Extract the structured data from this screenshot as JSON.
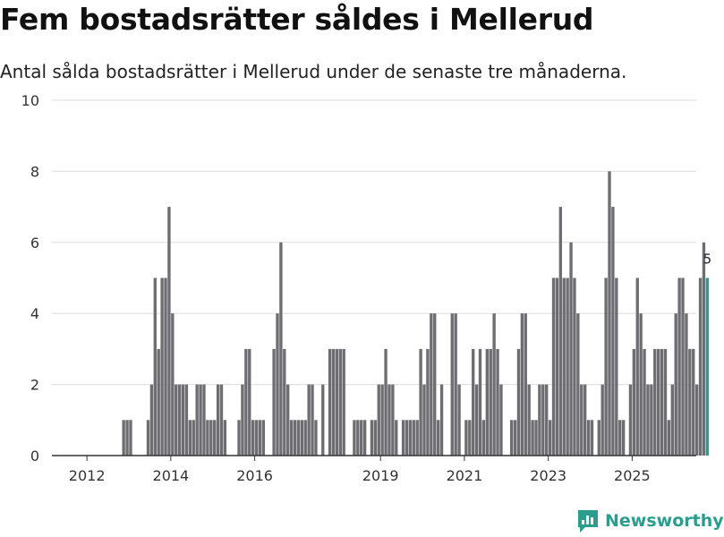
{
  "title": "Fem bostadsrätter såldes i Mellerud",
  "subtitle": "Antal sålda bostadsrätter i Mellerud under de senaste tre månaderna.",
  "brand": "Newsworthy",
  "colors": {
    "bar": "#6d6d72",
    "highlight": "#2a9d8f",
    "grid": "#dddddd",
    "axis": "#333333"
  },
  "chart_data": {
    "type": "bar",
    "title": "Fem bostadsrätter såldes i Mellerud",
    "xlabel": "",
    "ylabel": "",
    "ylim": [
      0,
      10
    ],
    "yticks": [
      0,
      2,
      4,
      6,
      8,
      10
    ],
    "xlim": [
      2011.25,
      2026.4
    ],
    "xticks": [
      {
        "label": "2012",
        "value": 2012
      },
      {
        "label": "2014",
        "value": 2014
      },
      {
        "label": "2016",
        "value": 2016
      },
      {
        "label": "2019",
        "value": 2019
      },
      {
        "label": "2021",
        "value": 2021
      },
      {
        "label": "2023",
        "value": 2023
      },
      {
        "label": "2025",
        "value": 2025
      }
    ],
    "start_month": "2011-05",
    "values": [
      0,
      0,
      0,
      0,
      0,
      0,
      0,
      0,
      0,
      0,
      0,
      0,
      0,
      0,
      0,
      0,
      0,
      0,
      1,
      1,
      1,
      0,
      0,
      0,
      0,
      1,
      2,
      5,
      3,
      5,
      5,
      7,
      4,
      2,
      2,
      2,
      2,
      1,
      1,
      2,
      2,
      2,
      1,
      1,
      1,
      2,
      2,
      1,
      0,
      0,
      0,
      1,
      2,
      3,
      3,
      1,
      1,
      1,
      1,
      0,
      0,
      3,
      4,
      6,
      3,
      2,
      1,
      1,
      1,
      1,
      1,
      2,
      2,
      1,
      0,
      2,
      0,
      3,
      3,
      3,
      3,
      3,
      0,
      0,
      1,
      1,
      1,
      1,
      0,
      1,
      1,
      2,
      2,
      3,
      2,
      2,
      1,
      0,
      1,
      1,
      1,
      1,
      1,
      3,
      2,
      3,
      4,
      4,
      1,
      2,
      0,
      0,
      4,
      4,
      2,
      0,
      1,
      1,
      3,
      2,
      3,
      1,
      3,
      3,
      4,
      3,
      2,
      0,
      0,
      1,
      1,
      3,
      4,
      4,
      2,
      1,
      1,
      2,
      2,
      2,
      1,
      5,
      5,
      7,
      5,
      5,
      6,
      5,
      4,
      2,
      2,
      1,
      1,
      0,
      1,
      2,
      5,
      8,
      7,
      5,
      1,
      1,
      0,
      2,
      3,
      5,
      4,
      3,
      2,
      2,
      3,
      3,
      3,
      3,
      1,
      2,
      4,
      5,
      5,
      4,
      3,
      3,
      2,
      5,
      6,
      5
    ],
    "highlight_last": true,
    "annotation": {
      "text": "5",
      "value": 5
    }
  }
}
